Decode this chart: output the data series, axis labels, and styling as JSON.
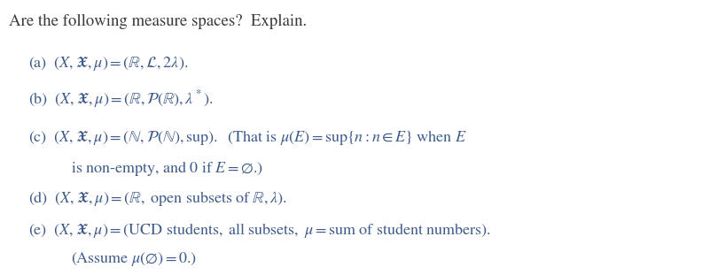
{
  "background_color": "#ffffff",
  "figsize": [
    8.1,
    3.11
  ],
  "dpi": 100,
  "title_color": "#3a3a3a",
  "body_color": "#3d5a8a",
  "lines": [
    {
      "fx": 0.012,
      "fy": 0.895,
      "text": "Are the following measure spaces?  Explain.",
      "fontsize": 13.5,
      "color": "#3a3a3a"
    },
    {
      "fx": 0.04,
      "fy": 0.735,
      "text": "(a)  $(X, \\mathfrak{X}, \\mu) = (\\mathbb{R}, \\mathcal{L}, 2\\lambda).$",
      "fontsize": 13.0,
      "color": "#3d5a8a"
    },
    {
      "fx": 0.04,
      "fy": 0.6,
      "text": "(b)  $(X, \\mathfrak{X}, \\mu) = (\\mathbb{R}, \\mathcal{P}(\\mathbb{R}), \\lambda^*).$",
      "fontsize": 13.0,
      "color": "#3d5a8a"
    },
    {
      "fx": 0.04,
      "fy": 0.465,
      "text": "(c)  $(X, \\mathfrak{X}, \\mu) = (\\mathbb{N}, \\mathcal{P}(\\mathbb{N}), \\mathrm{sup}).$  (That is $\\mu(E) = \\sup\\{n : n \\in E\\}$ when $E$",
      "fontsize": 13.0,
      "color": "#3d5a8a"
    },
    {
      "fx": 0.099,
      "fy": 0.355,
      "text": "is non-empty, and 0 if $E = \\emptyset$.)",
      "fontsize": 13.0,
      "color": "#3d5a8a"
    },
    {
      "fx": 0.04,
      "fy": 0.245,
      "text": "(d)  $(X, \\mathfrak{X}, \\mu) = (\\mathbb{R},\\ \\mathrm{open\\ subsets\\ of}\\ \\mathbb{R}, \\lambda).$",
      "fontsize": 13.0,
      "color": "#3d5a8a"
    },
    {
      "fx": 0.04,
      "fy": 0.13,
      "text": "(e)  $(X, \\mathfrak{X}, \\mu) = (\\mathrm{UCD\\ students},\\ \\mathrm{all\\ subsets},\\ \\mu = \\mathrm{sum\\ of\\ student\\ numbers}).$",
      "fontsize": 13.0,
      "color": "#3d5a8a"
    },
    {
      "fx": 0.099,
      "fy": 0.025,
      "text": "(Assume $\\mu(\\emptyset) = 0$.)",
      "fontsize": 13.0,
      "color": "#3d5a8a"
    }
  ]
}
